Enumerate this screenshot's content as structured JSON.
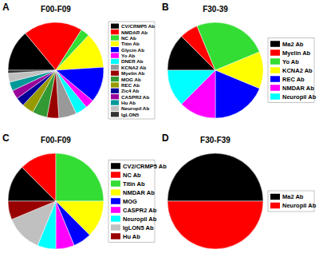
{
  "chart_data": [
    {
      "type": "pie",
      "title": "F00-F09",
      "annotations": [
        "A"
      ],
      "categories": [
        "CV/CRMP5 Ab",
        "NMDAR Ab",
        "NC Ab",
        "Titin Ab",
        "Glycin Ab",
        "Yo Ab",
        "DNER Ab",
        "KCNA2 Ab",
        "Myelin Ab",
        "MOG Ab",
        "REC Ab",
        "Zic4 Ab",
        "CASPR2 Ab",
        "Hu Ab",
        "Neuropil Ab",
        "IgLON5"
      ],
      "values": [
        14,
        20,
        3,
        12,
        12,
        3,
        4,
        6,
        4,
        5,
        4,
        3,
        3,
        3,
        3,
        1
      ],
      "colors": [
        "#000000",
        "#ff0000",
        "#33dd33",
        "#ffff00",
        "#0000ff",
        "#ff00ff",
        "#00ffff",
        "#999999",
        "#990000",
        "#339933",
        "#999900",
        "#000099",
        "#990099",
        "#009999",
        "#c0c0c0",
        "#333333"
      ],
      "legend": "right"
    },
    {
      "type": "pie",
      "title": "F30-39",
      "annotations": [
        "B"
      ],
      "categories": [
        "Ma2 Ab",
        "Myelin Ab",
        "Yo Ab",
        "KCNA2 Ab",
        "REC Ab",
        "NMDAR Ab",
        "Neuropil Ab"
      ],
      "values": [
        12.5,
        6.25,
        25,
        12.5,
        18.75,
        12.5,
        12.5
      ],
      "colors": [
        "#000000",
        "#ff0000",
        "#33dd33",
        "#ffff00",
        "#0000ff",
        "#ff00ff",
        "#00ffff"
      ],
      "legend": "right"
    },
    {
      "type": "pie",
      "title": "F00-F09",
      "annotations": [
        "C"
      ],
      "categories": [
        "CV2/CRMP5 Ab",
        "NC Ab",
        "Titin Ab",
        "NMDAR Ab",
        "MOG",
        "CASPR2 Ab",
        "Neuropil Ab",
        "IgLON5 Ab",
        "Hu Ab"
      ],
      "values": [
        12.5,
        12.5,
        25,
        12.5,
        6.25,
        6.25,
        6.25,
        12.5,
        6.25
      ],
      "colors": [
        "#000000",
        "#ff0000",
        "#33dd33",
        "#ffff00",
        "#0000ff",
        "#ff00ff",
        "#00ffff",
        "#c0c0c0",
        "#990000"
      ],
      "legend": "right"
    },
    {
      "type": "pie",
      "title": "F30-F39",
      "annotations": [
        "D"
      ],
      "categories": [
        "Ma2 Ab",
        "Neuropil Ab"
      ],
      "values": [
        50,
        50
      ],
      "colors": [
        "#000000",
        "#ff0000"
      ],
      "legend": "right"
    }
  ]
}
